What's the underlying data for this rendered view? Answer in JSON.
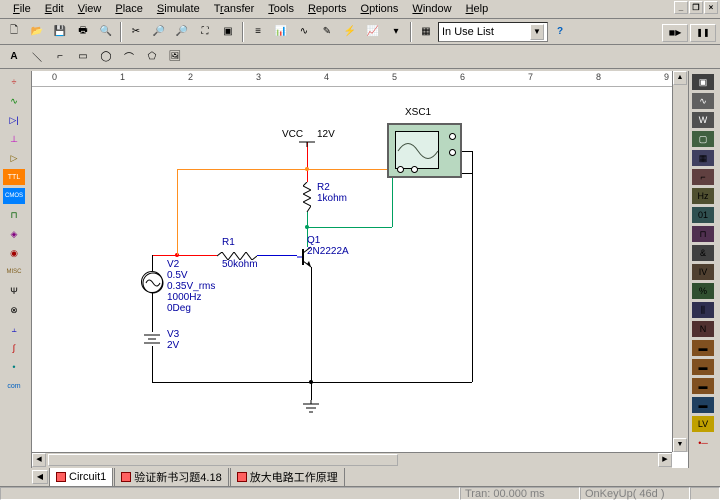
{
  "menus": [
    "File",
    "Edit",
    "View",
    "Place",
    "Simulate",
    "Transfer",
    "Tools",
    "Reports",
    "Options",
    "Window",
    "Help"
  ],
  "combo": {
    "value": "In Use List"
  },
  "ruler_marks": [
    "0",
    "1",
    "2",
    "3",
    "4",
    "5",
    "6",
    "7",
    "8",
    "9"
  ],
  "tabs": [
    {
      "label": "Circuit1",
      "active": true
    },
    {
      "label": "验证新书习题4.18",
      "active": false
    },
    {
      "label": "放大电路工作原理",
      "active": false
    }
  ],
  "status": {
    "tran": "Tran: 00.000 ms",
    "key": "OnKeyUp( 46d )"
  },
  "schematic": {
    "colors": {
      "red": "#ff0000",
      "green": "#00a060",
      "orange": "#ff9020",
      "blue": "#0000d0",
      "black": "#000000"
    },
    "vcc": {
      "label": "VCC",
      "value": "12V"
    },
    "r1": {
      "name": "R1",
      "value": "50kohm"
    },
    "r2": {
      "name": "R2",
      "value": "1kohm"
    },
    "q1": {
      "name": "Q1",
      "value": "2N2222A"
    },
    "v2": {
      "name": "V2",
      "lines": [
        "0.5V",
        "0.35V_rms",
        "1000Hz",
        "0Deg"
      ]
    },
    "v3": {
      "name": "V3",
      "value": "2V"
    },
    "scope": {
      "name": "XSC1"
    }
  }
}
